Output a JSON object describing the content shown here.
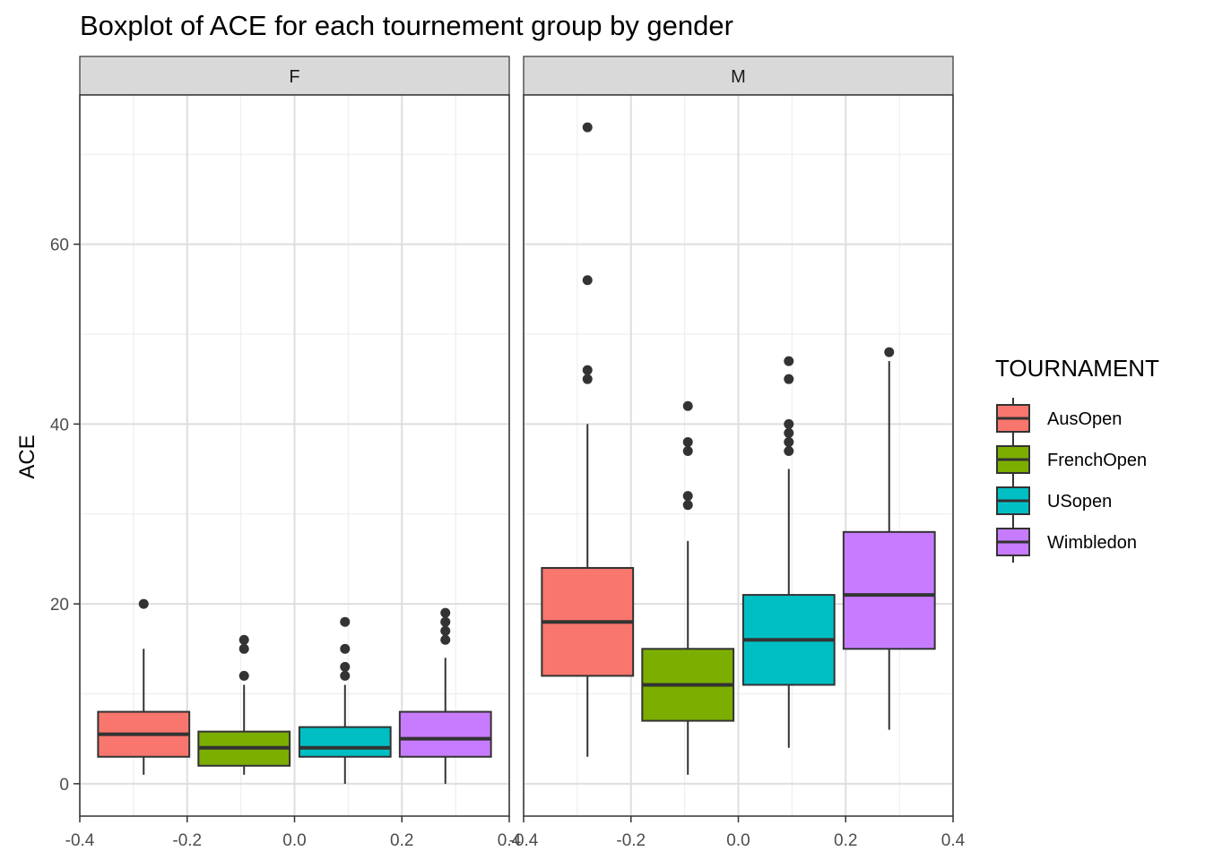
{
  "chart_data": {
    "type": "boxplot",
    "title": "Boxplot of ACE for each tournement group by gender",
    "ylabel": "ACE",
    "xlabel": "",
    "ylim": [
      -3.6,
      76.6
    ],
    "xlim": [
      -0.4,
      0.4
    ],
    "x_ticks": [
      "-0.4",
      "-0.2",
      "0.0",
      "0.2",
      "0.4"
    ],
    "x_tick_values": [
      -0.4,
      -0.2,
      0.0,
      0.2,
      0.4
    ],
    "y_ticks": [
      "0",
      "20",
      "40",
      "60"
    ],
    "y_tick_values": [
      0,
      20,
      40,
      60
    ],
    "grid": true,
    "legend": {
      "title": "TOURNAMENT",
      "position": "right",
      "entries": [
        "AusOpen",
        "FrenchOpen",
        "USopen",
        "Wimbledon"
      ]
    },
    "colors": {
      "AusOpen": "#F8766D",
      "FrenchOpen": "#7CAE00",
      "USopen": "#00BFC4",
      "Wimbledon": "#C77CFF",
      "strip": "#D9D9D9",
      "outline": "#333333"
    },
    "facets": [
      {
        "label": "F",
        "boxes": [
          {
            "group": "AusOpen",
            "x_center": -0.281,
            "min": 1,
            "q1": 3,
            "median": 5.5,
            "q3": 8,
            "max": 15,
            "outliers": [
              20
            ]
          },
          {
            "group": "FrenchOpen",
            "x_center": -0.094,
            "min": 1,
            "q1": 2,
            "median": 4,
            "q3": 5.8,
            "max": 11,
            "outliers": [
              12,
              15,
              16
            ]
          },
          {
            "group": "USopen",
            "x_center": 0.094,
            "min": 0,
            "q1": 3,
            "median": 4,
            "q3": 6.3,
            "max": 11,
            "outliers": [
              12,
              13,
              15,
              18
            ]
          },
          {
            "group": "Wimbledon",
            "x_center": 0.281,
            "min": 0,
            "q1": 3,
            "median": 5,
            "q3": 8,
            "max": 14,
            "outliers": [
              16,
              17,
              18,
              19
            ]
          }
        ]
      },
      {
        "label": "M",
        "boxes": [
          {
            "group": "AusOpen",
            "x_center": -0.281,
            "min": 3,
            "q1": 12,
            "median": 18,
            "q3": 24,
            "max": 40,
            "outliers": [
              45,
              46,
              56,
              73
            ]
          },
          {
            "group": "FrenchOpen",
            "x_center": -0.094,
            "min": 1,
            "q1": 7,
            "median": 11,
            "q3": 15,
            "max": 27,
            "outliers": [
              31,
              32,
              37,
              38,
              42
            ]
          },
          {
            "group": "USopen",
            "x_center": 0.094,
            "min": 4,
            "q1": 11,
            "median": 16,
            "q3": 21,
            "max": 35,
            "outliers": [
              37,
              38,
              39,
              40,
              45,
              47
            ]
          },
          {
            "group": "Wimbledon",
            "x_center": 0.281,
            "min": 6,
            "q1": 15,
            "median": 21,
            "q3": 28,
            "max": 47,
            "outliers": [
              48
            ]
          }
        ]
      }
    ]
  }
}
